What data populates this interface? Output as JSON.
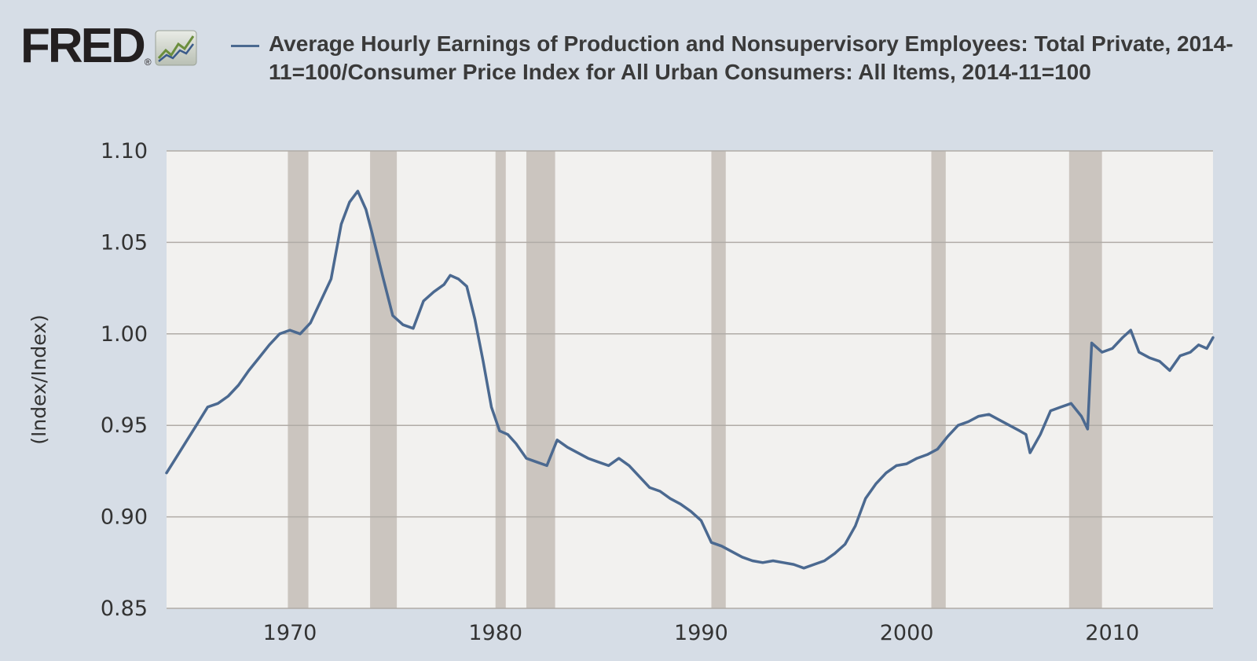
{
  "logo": {
    "text": "FRED",
    "reg": "®",
    "icon": "chart-trend-icon"
  },
  "chart_data": {
    "type": "line",
    "title": "Average Hourly Earnings of Production and Nonsupervisory Employees: Total Private, 2014-11=100/Consumer Price Index for All Urban Consumers: All Items, 2014-11=100",
    "xlabel": "",
    "ylabel": "(Index/Index)",
    "xlim": [
      1964.0,
      2014.9
    ],
    "ylim": [
      0.85,
      1.1
    ],
    "x_ticks": [
      1970,
      1980,
      1990,
      2000,
      2010
    ],
    "y_ticks": [
      "0.85",
      "0.90",
      "0.95",
      "1.00",
      "1.05",
      "1.10"
    ],
    "grid": "horizontal",
    "recessions": [
      [
        1969.9,
        1970.9
      ],
      [
        1973.9,
        1975.2
      ],
      [
        1980.0,
        1980.5
      ],
      [
        1981.5,
        1982.9
      ],
      [
        1990.5,
        1991.2
      ],
      [
        2001.2,
        2001.9
      ],
      [
        2007.9,
        2009.5
      ]
    ],
    "series": [
      {
        "name": "Average Hourly Earnings of Production and Nonsupervisory Employees: Total Private, 2014-11=100/Consumer Price Index for All Urban Consumers: All Items, 2014-11=100",
        "color": "#4b6990",
        "x": [
          1964.0,
          1964.5,
          1965.0,
          1965.5,
          1966.0,
          1966.5,
          1967.0,
          1967.5,
          1968.0,
          1968.5,
          1969.0,
          1969.5,
          1970.0,
          1970.5,
          1971.0,
          1971.5,
          1972.0,
          1972.5,
          1972.9,
          1973.3,
          1973.7,
          1974.0,
          1974.5,
          1975.0,
          1975.5,
          1976.0,
          1976.5,
          1977.0,
          1977.5,
          1977.8,
          1978.2,
          1978.6,
          1979.0,
          1979.4,
          1979.8,
          1980.2,
          1980.6,
          1981.0,
          1981.5,
          1982.0,
          1982.5,
          1983.0,
          1983.5,
          1984.0,
          1984.5,
          1985.0,
          1985.5,
          1986.0,
          1986.5,
          1987.0,
          1987.5,
          1988.0,
          1988.5,
          1989.0,
          1989.5,
          1990.0,
          1990.5,
          1991.0,
          1991.5,
          1992.0,
          1992.5,
          1993.0,
          1993.5,
          1994.0,
          1994.5,
          1995.0,
          1995.5,
          1996.0,
          1996.5,
          1997.0,
          1997.5,
          1998.0,
          1998.5,
          1999.0,
          1999.5,
          2000.0,
          2000.5,
          2001.0,
          2001.5,
          2002.0,
          2002.5,
          2003.0,
          2003.5,
          2004.0,
          2004.5,
          2005.0,
          2005.5,
          2005.8,
          2006.0,
          2006.5,
          2007.0,
          2007.5,
          2008.0,
          2008.5,
          2008.8,
          2009.0,
          2009.5,
          2010.0,
          2010.5,
          2010.9,
          2011.3,
          2011.8,
          2012.3,
          2012.8,
          2013.3,
          2013.8,
          2014.2,
          2014.6,
          2014.9
        ],
        "values": [
          0.924,
          0.933,
          0.942,
          0.951,
          0.96,
          0.962,
          0.966,
          0.972,
          0.98,
          0.987,
          0.994,
          1.0,
          1.002,
          1.0,
          1.006,
          1.018,
          1.03,
          1.06,
          1.072,
          1.078,
          1.068,
          1.055,
          1.032,
          1.01,
          1.005,
          1.003,
          1.018,
          1.023,
          1.027,
          1.032,
          1.03,
          1.026,
          1.008,
          0.985,
          0.96,
          0.947,
          0.945,
          0.94,
          0.932,
          0.93,
          0.928,
          0.942,
          0.938,
          0.935,
          0.932,
          0.93,
          0.928,
          0.932,
          0.928,
          0.922,
          0.916,
          0.914,
          0.91,
          0.907,
          0.903,
          0.898,
          0.886,
          0.884,
          0.881,
          0.878,
          0.876,
          0.875,
          0.876,
          0.875,
          0.874,
          0.872,
          0.874,
          0.876,
          0.88,
          0.885,
          0.895,
          0.91,
          0.918,
          0.924,
          0.928,
          0.929,
          0.932,
          0.934,
          0.937,
          0.944,
          0.95,
          0.952,
          0.955,
          0.956,
          0.953,
          0.95,
          0.947,
          0.945,
          0.935,
          0.945,
          0.958,
          0.96,
          0.962,
          0.955,
          0.948,
          0.995,
          0.99,
          0.992,
          0.998,
          1.002,
          0.99,
          0.987,
          0.985,
          0.98,
          0.988,
          0.99,
          0.994,
          0.992,
          0.998
        ]
      }
    ]
  }
}
